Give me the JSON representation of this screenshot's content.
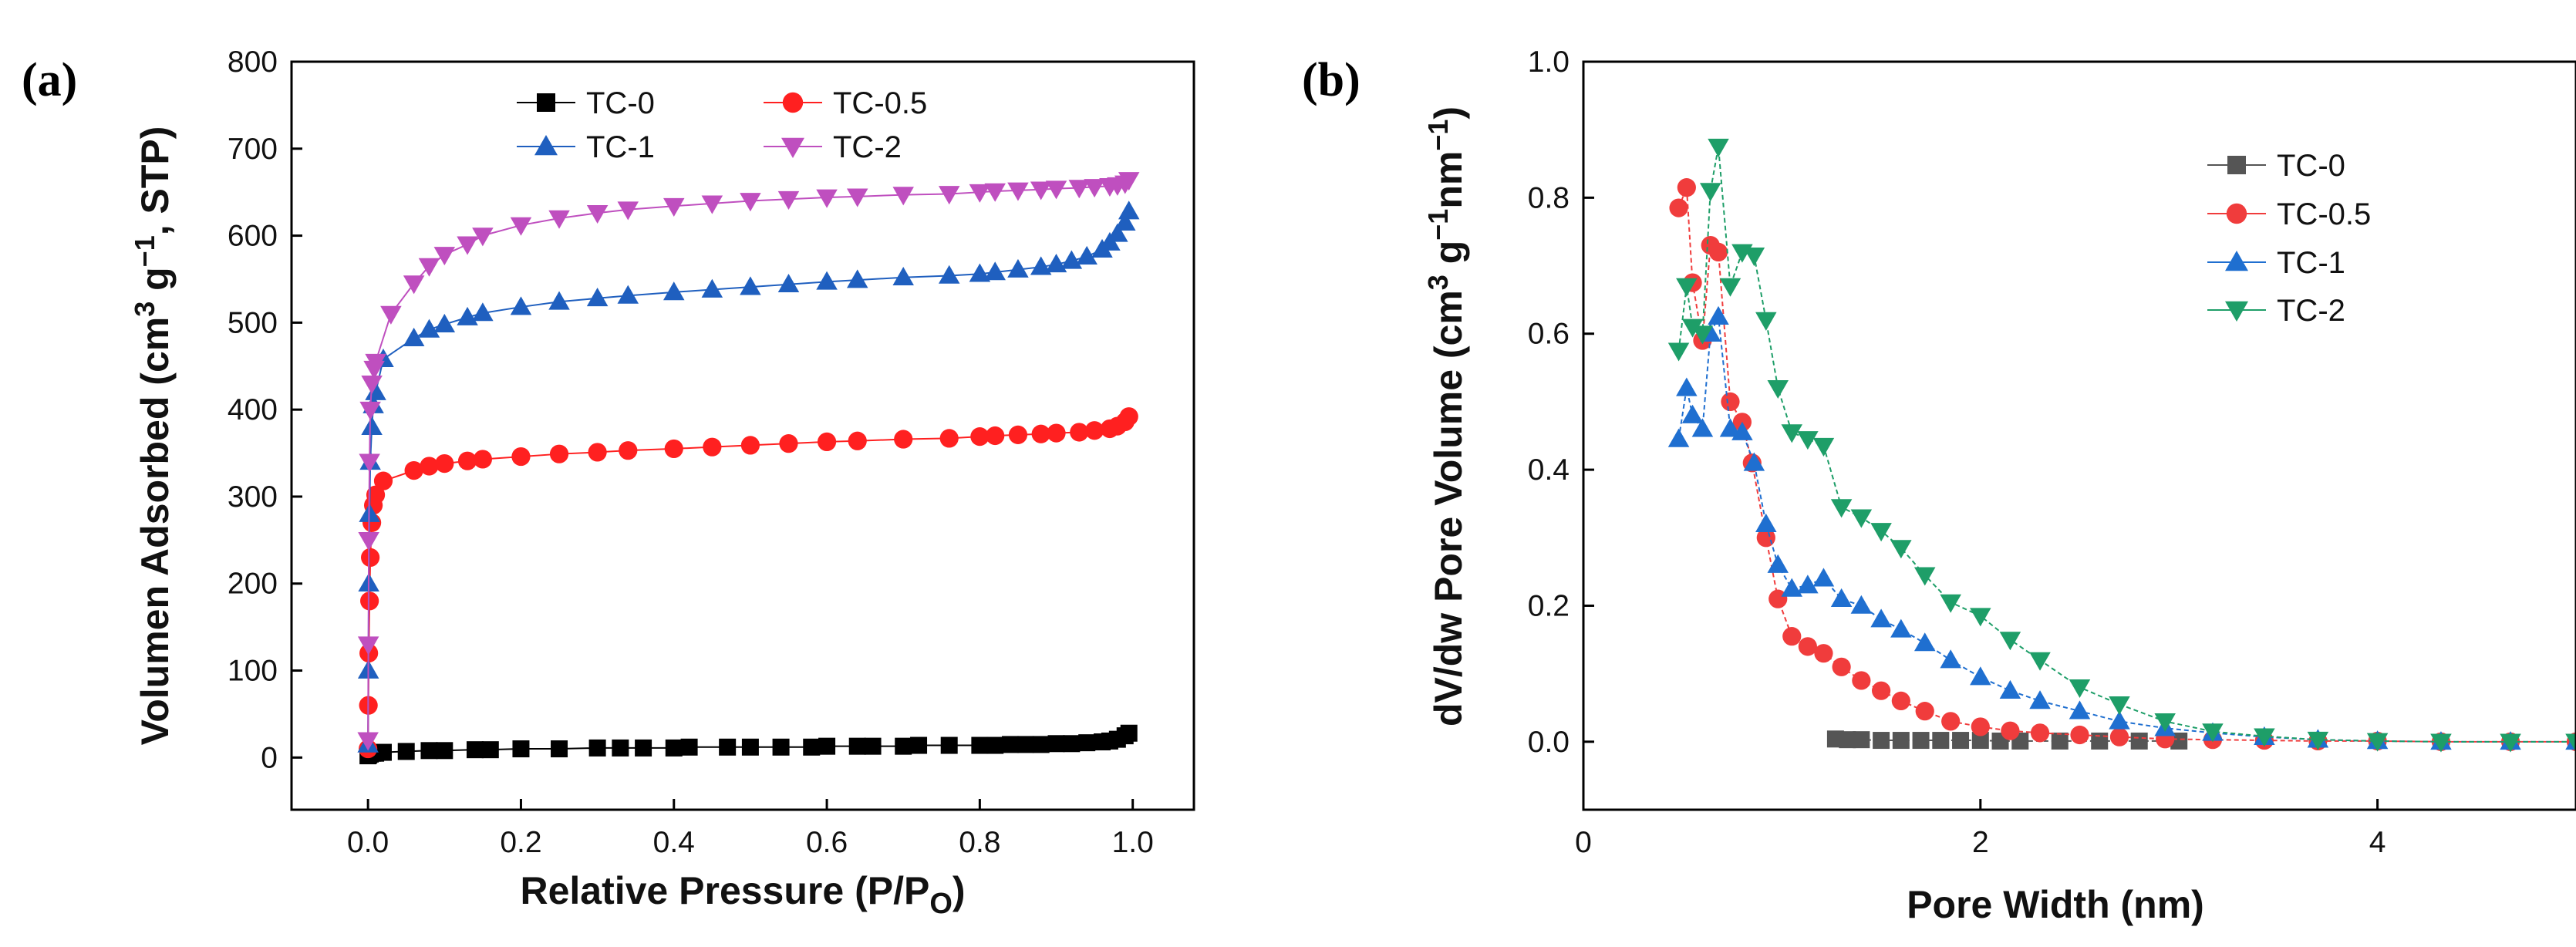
{
  "chart_data": [
    {
      "panel_label": "(a)",
      "type": "scatter",
      "xlabel_main": "Relative Pressure (P/P",
      "xlabel_sub": "O",
      "xlabel_end": ")",
      "ylabel_parts": {
        "a": "Volumen Adsorbed (cm",
        "b": "3",
        "c": " g",
        "d": "−1",
        "e": ", STP)"
      },
      "xlim": [
        -0.1,
        1.08
      ],
      "ylim": [
        -60,
        800
      ],
      "xticks": [
        0.0,
        0.2,
        0.4,
        0.6,
        0.8,
        1.0
      ],
      "xtick_labels": [
        "0.0",
        "0.2",
        "0.4",
        "0.6",
        "0.8",
        "1.0"
      ],
      "yticks": [
        0,
        100,
        200,
        300,
        400,
        500,
        600,
        700,
        800
      ],
      "ytick_labels": [
        "0",
        "100",
        "200",
        "300",
        "400",
        "500",
        "600",
        "700",
        "800"
      ],
      "legend_position": "top",
      "series": [
        {
          "name": "TC-0",
          "color": "#000000",
          "marker": "square",
          "x": [
            0.0,
            0.001,
            0.003,
            0.006,
            0.01,
            0.02,
            0.05,
            0.08,
            0.1,
            0.14,
            0.16,
            0.2,
            0.25,
            0.3,
            0.33,
            0.36,
            0.4,
            0.42,
            0.47,
            0.5,
            0.54,
            0.58,
            0.6,
            0.64,
            0.66,
            0.7,
            0.72,
            0.76,
            0.8,
            0.82,
            0.84,
            0.86,
            0.88,
            0.9,
            0.92,
            0.94,
            0.96,
            0.97,
            0.98,
            0.99,
            0.995
          ],
          "y": [
            2,
            3,
            4,
            5,
            5,
            6,
            7,
            8,
            8,
            9,
            9,
            10,
            10,
            11,
            11,
            11,
            11,
            12,
            12,
            12,
            12,
            12,
            13,
            13,
            13,
            13,
            14,
            14,
            14,
            14,
            15,
            15,
            15,
            16,
            16,
            17,
            18,
            19,
            21,
            25,
            28
          ]
        },
        {
          "name": "TC-0.5",
          "color": "#ff2020",
          "marker": "circle",
          "x": [
            0.0,
            0.0005,
            0.001,
            0.002,
            0.003,
            0.005,
            0.007,
            0.01,
            0.02,
            0.06,
            0.08,
            0.1,
            0.13,
            0.15,
            0.2,
            0.25,
            0.3,
            0.34,
            0.4,
            0.45,
            0.5,
            0.55,
            0.6,
            0.64,
            0.7,
            0.76,
            0.8,
            0.82,
            0.85,
            0.88,
            0.9,
            0.93,
            0.95,
            0.97,
            0.98,
            0.99,
            0.995
          ],
          "y": [
            10,
            60,
            120,
            180,
            230,
            270,
            290,
            302,
            318,
            330,
            335,
            338,
            341,
            343,
            346,
            349,
            351,
            353,
            355,
            357,
            359,
            361,
            363,
            364,
            366,
            367,
            369,
            370,
            371,
            372,
            373,
            374,
            376,
            378,
            381,
            386,
            392
          ]
        },
        {
          "name": "TC-1",
          "color": "#1f5fbf",
          "marker": "triangle-up",
          "x": [
            0.0,
            0.0005,
            0.001,
            0.002,
            0.003,
            0.005,
            0.007,
            0.01,
            0.02,
            0.06,
            0.08,
            0.1,
            0.13,
            0.15,
            0.2,
            0.25,
            0.3,
            0.34,
            0.4,
            0.45,
            0.5,
            0.55,
            0.6,
            0.64,
            0.7,
            0.76,
            0.8,
            0.82,
            0.85,
            0.88,
            0.9,
            0.92,
            0.94,
            0.96,
            0.97,
            0.98,
            0.99,
            0.995
          ],
          "y": [
            15,
            100,
            200,
            280,
            340,
            380,
            405,
            420,
            458,
            482,
            492,
            498,
            506,
            511,
            518,
            524,
            528,
            531,
            535,
            538,
            541,
            544,
            547,
            549,
            552,
            554,
            556,
            558,
            561,
            564,
            567,
            571,
            576,
            584,
            592,
            602,
            615,
            628
          ]
        },
        {
          "name": "TC-2",
          "color": "#bf4fbf",
          "marker": "triangle-down",
          "x": [
            0.0,
            0.0005,
            0.001,
            0.002,
            0.003,
            0.005,
            0.008,
            0.01,
            0.03,
            0.06,
            0.08,
            0.1,
            0.13,
            0.15,
            0.2,
            0.25,
            0.3,
            0.34,
            0.4,
            0.45,
            0.5,
            0.55,
            0.6,
            0.64,
            0.7,
            0.76,
            0.8,
            0.82,
            0.85,
            0.88,
            0.9,
            0.93,
            0.95,
            0.97,
            0.98,
            0.99,
            0.995
          ],
          "y": [
            20,
            130,
            250,
            340,
            400,
            430,
            447,
            455,
            510,
            545,
            565,
            578,
            590,
            600,
            612,
            620,
            626,
            630,
            634,
            637,
            640,
            642,
            644,
            645,
            647,
            648,
            650,
            651,
            652,
            653,
            654,
            655,
            656,
            657,
            658,
            660,
            664
          ]
        }
      ]
    },
    {
      "panel_label": "(b)",
      "type": "line",
      "xlabel": "Pore Width (nm)",
      "ylabel_parts": {
        "a": "dV/dw Pore Volume (cm",
        "b": "3",
        "c": " g",
        "d": "−1",
        "e": "nm",
        "f": "−1",
        "g": ")"
      },
      "xlim": [
        0,
        5
      ],
      "ylim": [
        -0.1,
        1.0
      ],
      "xticks": [
        0,
        2,
        4
      ],
      "xtick_labels": [
        "0",
        "2",
        "4"
      ],
      "yticks": [
        0.0,
        0.2,
        0.4,
        0.6,
        0.8,
        1.0
      ],
      "ytick_labels": [
        "0.0",
        "0.2",
        "0.4",
        "0.6",
        "0.8",
        "1.0"
      ],
      "legend_position": "top-right",
      "series": [
        {
          "name": "TC-0",
          "color": "#555555",
          "marker": "square",
          "x": [
            1.27,
            1.33,
            1.4,
            1.5,
            1.6,
            1.7,
            1.8,
            1.9,
            2.0,
            2.1,
            2.2,
            2.4,
            2.6,
            2.8,
            3.0
          ],
          "y": [
            0.004,
            0.003,
            0.003,
            0.002,
            0.002,
            0.002,
            0.002,
            0.002,
            0.002,
            0.001,
            0.001,
            0.001,
            0.001,
            0.001,
            0.001
          ]
        },
        {
          "name": "TC-0.5",
          "color": "#f03c3c",
          "marker": "circle",
          "x": [
            0.48,
            0.52,
            0.55,
            0.6,
            0.64,
            0.68,
            0.74,
            0.8,
            0.85,
            0.92,
            0.98,
            1.05,
            1.13,
            1.21,
            1.3,
            1.4,
            1.5,
            1.6,
            1.72,
            1.85,
            2.0,
            2.15,
            2.3,
            2.5,
            2.7,
            2.93,
            3.17,
            3.43,
            3.7,
            4.0,
            4.32,
            4.67,
            5.0
          ],
          "y": [
            0.785,
            0.815,
            0.675,
            0.59,
            0.73,
            0.72,
            0.5,
            0.47,
            0.41,
            0.3,
            0.21,
            0.155,
            0.14,
            0.13,
            0.11,
            0.09,
            0.075,
            0.06,
            0.045,
            0.03,
            0.022,
            0.016,
            0.013,
            0.01,
            0.007,
            0.004,
            0.003,
            0.002,
            0.001,
            0.001,
            0.0,
            0.0,
            0.0
          ]
        },
        {
          "name": "TC-1",
          "color": "#1f6fd0",
          "marker": "triangle-up",
          "x": [
            0.48,
            0.52,
            0.55,
            0.6,
            0.64,
            0.68,
            0.74,
            0.8,
            0.86,
            0.92,
            0.98,
            1.05,
            1.13,
            1.21,
            1.3,
            1.4,
            1.5,
            1.6,
            1.72,
            1.85,
            2.0,
            2.15,
            2.3,
            2.5,
            2.7,
            2.93,
            3.17,
            3.43,
            3.7,
            4.0,
            4.32,
            4.67,
            5.0
          ],
          "y": [
            0.445,
            0.52,
            0.48,
            0.46,
            0.6,
            0.625,
            0.46,
            0.455,
            0.41,
            0.32,
            0.26,
            0.225,
            0.23,
            0.24,
            0.21,
            0.2,
            0.18,
            0.165,
            0.145,
            0.12,
            0.095,
            0.075,
            0.06,
            0.045,
            0.03,
            0.02,
            0.013,
            0.007,
            0.003,
            0.001,
            0.0,
            0.0,
            0.0
          ]
        },
        {
          "name": "TC-2",
          "color": "#1e9e68",
          "marker": "triangle-down",
          "x": [
            0.48,
            0.52,
            0.55,
            0.6,
            0.64,
            0.68,
            0.74,
            0.8,
            0.86,
            0.92,
            0.98,
            1.05,
            1.13,
            1.21,
            1.3,
            1.4,
            1.5,
            1.6,
            1.72,
            1.85,
            2.0,
            2.15,
            2.3,
            2.5,
            2.7,
            2.93,
            3.17,
            3.43,
            3.7,
            4.0,
            4.32,
            4.67,
            5.0
          ],
          "y": [
            0.575,
            0.67,
            0.61,
            0.6,
            0.81,
            0.875,
            0.67,
            0.72,
            0.715,
            0.62,
            0.52,
            0.455,
            0.445,
            0.435,
            0.345,
            0.33,
            0.31,
            0.285,
            0.245,
            0.205,
            0.185,
            0.15,
            0.12,
            0.08,
            0.055,
            0.03,
            0.015,
            0.008,
            0.003,
            0.001,
            0.0,
            0.0,
            0.0
          ]
        }
      ]
    }
  ]
}
